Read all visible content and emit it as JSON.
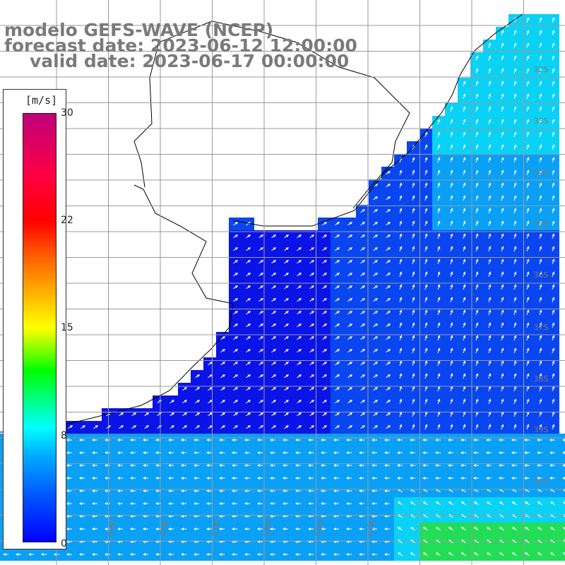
{
  "title": {
    "line1": "modelo GEFS-WAVE (NCEP)",
    "line2": "forecast date: 2023-06-12 12:00:00",
    "line3": "valid date: 2023-06-17 00:00:00"
  },
  "colorbar": {
    "unit": "[m/s]",
    "min": 0,
    "max": 30,
    "ticks": [
      "30",
      "22",
      "15",
      "8",
      "0"
    ],
    "tick_values": [
      30,
      22,
      15,
      8,
      0
    ]
  },
  "grid": {
    "lat_labels": [
      "32S",
      "33S",
      "34S",
      "35S",
      "36S",
      "37S",
      "38S",
      "39S",
      "40S"
    ],
    "lon_labels": [
      "60W",
      "59W",
      "58W",
      "57W",
      "56W",
      "55W",
      "54W"
    ]
  },
  "colors": {
    "land": "#ffffff",
    "sea_dark": "#0a14e6",
    "sea_mid": "#0a46f0",
    "sea_light": "#0aa0f5",
    "sea_cyan": "#0ad2f5",
    "sea_green": "#22dd55",
    "coastline": "#000000",
    "gridlines": "#9a9a9a",
    "arrows": "#ffffff"
  },
  "icons": {
    "arrow": "wind-direction-arrow-icon"
  }
}
